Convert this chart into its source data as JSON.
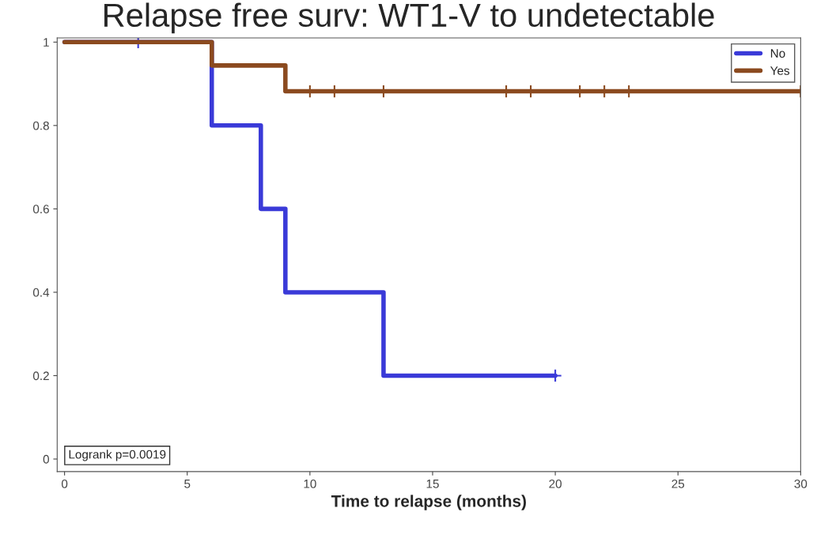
{
  "chart_data": {
    "type": "step",
    "title": "Relapse free surv: WT1-V to undetectable",
    "xlabel": "Time to relapse (months)",
    "series": [
      {
        "name": "No",
        "color": "#3a3ad8",
        "x": [
          0,
          6,
          8,
          9,
          13,
          20
        ],
        "values": [
          1,
          0.8,
          0.6,
          0.4,
          0.2,
          0.2
        ]
      },
      {
        "name": "Yes",
        "color": "#8b4a1f",
        "x": [
          0,
          6,
          9,
          30
        ],
        "values": [
          1,
          0.944,
          0.882,
          0.882
        ]
      },
      {
        "type": "scatter",
        "marker": "cross",
        "color": "#3a3ad8",
        "x": [
          3,
          20
        ],
        "values": [
          1,
          0.2
        ]
      },
      {
        "type": "scatter",
        "marker": "cross",
        "color": "#8b4a1f",
        "x": [
          10,
          11,
          13,
          18,
          19,
          21,
          22,
          23,
          30
        ],
        "values": [
          0.882,
          0.882,
          0.882,
          0.882,
          0.882,
          0.882,
          0.882,
          0.882,
          0.882
        ]
      }
    ],
    "xlim": [
      -0.3,
      30
    ],
    "ylim": [
      -0.03,
      1.01
    ],
    "xticks": [
      0,
      5,
      10,
      15,
      20,
      25,
      30
    ],
    "yticks": [
      0,
      {
        "value": 0.2,
        "label": "0.2"
      },
      {
        "value": 0.4,
        "label": "0.4"
      },
      {
        "value": 0.6,
        "label": "0.6"
      },
      {
        "value": 0.8,
        "label": "0.8"
      },
      1
    ],
    "legend": "top right",
    "grid": false,
    "annotations": [
      "Logrank p=0.0019"
    ]
  }
}
